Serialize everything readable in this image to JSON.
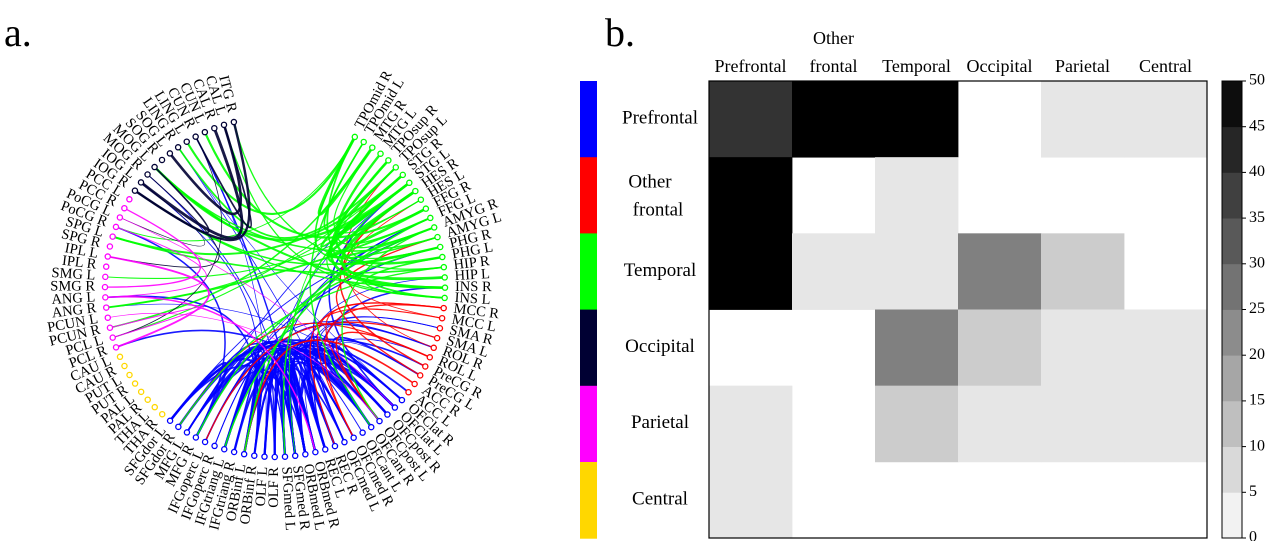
{
  "panel_a_label": "a.",
  "panel_b_label": "b.",
  "colors": {
    "Prefrontal": "#0000ff",
    "Other frontal": "#ff0000",
    "Temporal": "#00ff00",
    "Occipital": "#000033",
    "Parietal": "#ff00ff",
    "Central": "#ffd700"
  },
  "chart_data": [
    {
      "type": "chord",
      "node_groups": [
        {
          "group": "Temporal",
          "nodes": [
            "TPOmid R",
            "TPOmid L",
            "MTG R",
            "MTG L",
            "TPOsup R",
            "TPOsup L",
            "STG R",
            "STG L",
            "HES R",
            "HES L",
            "FFG R",
            "FFG L",
            "AMYG R",
            "AMYG L",
            "PHG R",
            "PHG L",
            "HIP R",
            "HIP L",
            "INS R",
            "INS L"
          ]
        },
        {
          "group": "Other frontal",
          "nodes": [
            "MCC R",
            "MCC L",
            "SMA R",
            "SMA L",
            "ROL R",
            "ROL L",
            "PreCG R",
            "PreCG L",
            "ACC R",
            "ACC L"
          ]
        },
        {
          "group": "Prefrontal",
          "nodes": [
            "OFClat R",
            "OFClat L",
            "OFCpost R",
            "OFCpost L",
            "OFCant R",
            "OFCant L",
            "OFCmed R",
            "OFCmed L",
            "REC R",
            "REC L",
            "ORBmed R",
            "ORBmed L",
            "SFGmed R",
            "SFGmed L",
            "OLF R",
            "OLF L",
            "ORBinf R",
            "ORBinf L",
            "IFGtriang R",
            "IFGtriang L",
            "IFGoperc R",
            "IFGoperc L",
            "MFG R",
            "MFG L",
            "SFGdor R",
            "SFGdor L"
          ]
        },
        {
          "group": "Central",
          "nodes": [
            "THA R",
            "THA L",
            "PAL R",
            "PAL L",
            "PUT R",
            "PUT L",
            "CAU R",
            "CAU L"
          ]
        },
        {
          "group": "Parietal",
          "nodes": [
            "PCL R",
            "PCL L",
            "PCUN R",
            "PCUN L",
            "ANG R",
            "ANG L",
            "SMG R",
            "SMG L",
            "IPL R",
            "IPL L",
            "SPG R",
            "SPG L",
            "PoCG R",
            "PoCG L",
            "PCC R",
            "PCC L"
          ]
        },
        {
          "group": "Occipital",
          "nodes": [
            "IOG R",
            "IOG L",
            "MOG R",
            "MOG L",
            "SOG R",
            "SOG L",
            "LING R",
            "LING L",
            "CUN R",
            "CUN L",
            "CAL R",
            "CAL L",
            "ITG R"
          ]
        }
      ],
      "legend": [
        "Prefrontal",
        "Other frontal",
        "Temporal",
        "Occipital",
        "Parietal",
        "Central"
      ]
    },
    {
      "type": "heatmap",
      "columns": [
        "Prefrontal",
        "Other frontal",
        "Temporal",
        "Occipital",
        "Parietal",
        "Central"
      ],
      "rows": [
        "Prefrontal",
        "Other frontal",
        "Temporal",
        "Occipital",
        "Parietal",
        "Central"
      ],
      "values": [
        [
          40,
          50,
          50,
          null,
          5,
          5
        ],
        [
          50,
          null,
          5,
          null,
          null,
          null
        ],
        [
          50,
          5,
          5,
          25,
          10,
          null
        ],
        [
          null,
          null,
          25,
          10,
          5,
          5
        ],
        [
          5,
          null,
          10,
          5,
          5,
          5
        ],
        [
          5,
          null,
          null,
          null,
          null,
          null
        ]
      ],
      "colorbar": {
        "min": 0,
        "max": 50,
        "ticks": [
          0,
          5,
          10,
          15,
          20,
          25,
          30,
          35,
          40,
          45,
          50
        ],
        "colormap": "gray reversed (white=0, black=50)"
      }
    }
  ]
}
